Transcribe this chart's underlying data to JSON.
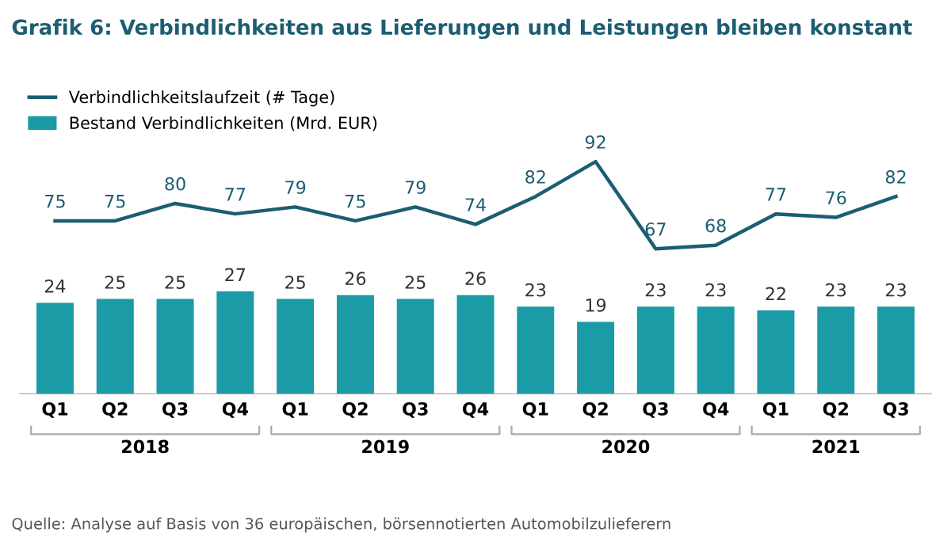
{
  "chart_data": [
    {
      "type": "line",
      "title": "Grafik 6: Verbindlichkeiten aus Lieferungen und Leistungen bleiben konstant",
      "categories": [
        null,
        null,
        null,
        null,
        null,
        null,
        null,
        null,
        null,
        null,
        null,
        null,
        null,
        null,
        null
      ],
      "series": [
        {
          "name": "Verbindlichkeitslaufzeit (# Tage)",
          "color": "#1b5e73",
          "values": [
            75,
            75,
            80,
            77,
            79,
            75,
            79,
            74,
            82,
            92,
            67,
            68,
            77,
            76,
            82
          ]
        }
      ],
      "data_labels": true,
      "legend": "top left",
      "tick_labels": false
    },
    {
      "type": "bar",
      "categories": [
        "Q1",
        "Q2",
        "Q3",
        "Q4",
        "Q1",
        "Q2",
        "Q3",
        "Q4",
        "Q1",
        "Q2",
        "Q3",
        "Q4",
        "Q1",
        "Q2",
        "Q3"
      ],
      "series": [
        {
          "name": "Bestand Verbindlichkeiten (Mrd. EUR)",
          "color": "#1a9ba6",
          "values": [
            24,
            25,
            25,
            27,
            25,
            26,
            25,
            26,
            23,
            19,
            23,
            23,
            22,
            23,
            23
          ]
        }
      ],
      "data_labels": true,
      "legend": "top left",
      "tick_labels": "x",
      "annotations": [
        "2018",
        "2019",
        "2020",
        "2021",
        "Quelle: Analyse auf Basis von 36 europäischen, börsennotierten Automobilzulieferern"
      ]
    }
  ]
}
